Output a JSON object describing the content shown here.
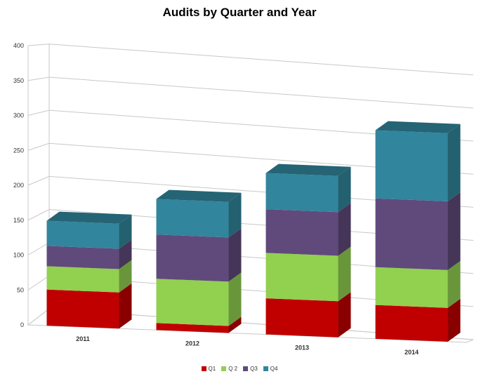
{
  "chart_data": {
    "type": "bar",
    "stacked": true,
    "style": "3d",
    "title": "Audits by Quarter and Year",
    "xlabel": "",
    "ylabel": "",
    "categories": [
      "2011",
      "2012",
      "2013",
      "2014"
    ],
    "ylim": [
      0,
      400
    ],
    "yticks": [
      0,
      50,
      100,
      150,
      200,
      250,
      300,
      350,
      400
    ],
    "grid": true,
    "legend_position": "bottom",
    "series": [
      {
        "name": "Q1",
        "values": [
          62,
          12,
          62,
          58
        ],
        "color": "#c00000"
      },
      {
        "name": "Q 2",
        "values": [
          40,
          76,
          78,
          65
        ],
        "color": "#92d050"
      },
      {
        "name": "Q3",
        "values": [
          35,
          76,
          75,
          118
        ],
        "color": "#604a7b"
      },
      {
        "name": "Q4",
        "values": [
          43,
          61,
          62,
          117
        ],
        "color": "#31859c"
      }
    ]
  }
}
